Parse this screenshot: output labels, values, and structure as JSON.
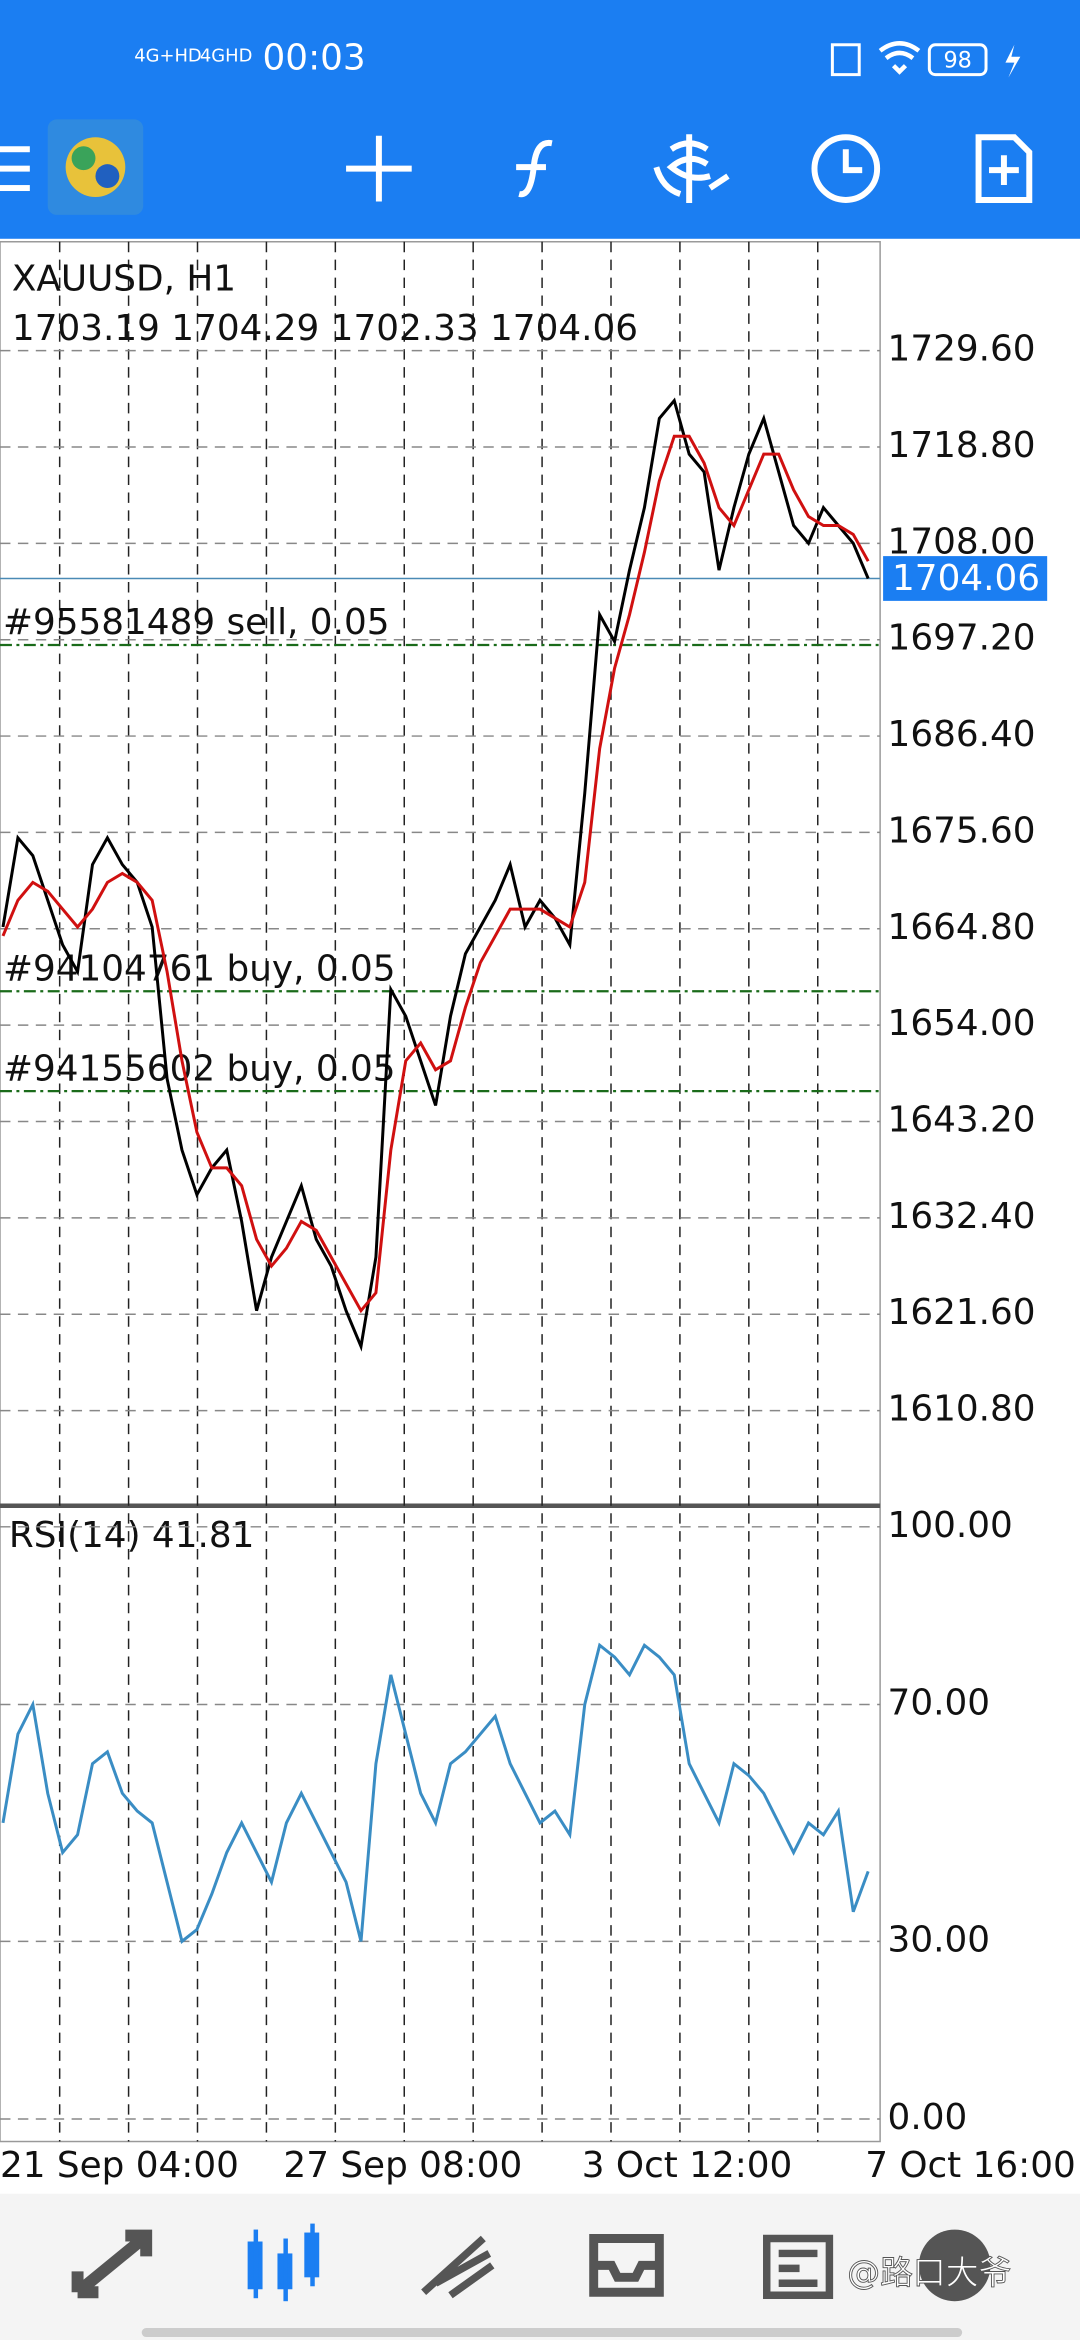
{
  "status_bar": {
    "network_1": "4G+HD",
    "network_2": "4GHD",
    "time": "00:03",
    "battery": "98"
  },
  "chart_data": [
    {
      "type": "line",
      "title": "XAUUSD, H1",
      "subtitle": "1703.19 1704.29 1702.33 1704.06",
      "ylim": [
        1600.3,
        1741.8
      ],
      "yticks": [
        {
          "value": 1610.8,
          "label": "1610.80"
        },
        {
          "value": 1621.6,
          "label": "1621.60"
        },
        {
          "value": 1632.4,
          "label": "1632.40"
        },
        {
          "value": 1643.2,
          "label": "1643.20"
        },
        {
          "value": 1654,
          "label": "1654.00"
        },
        {
          "value": 1664.8,
          "label": "1664.80"
        },
        {
          "value": 1675.6,
          "label": "1675.60"
        },
        {
          "value": 1686.4,
          "label": "1686.40"
        },
        {
          "value": 1697.2,
          "label": "1697.20"
        },
        {
          "value": 1708,
          "label": "1708.00"
        },
        {
          "value": 1718.8,
          "label": "1718.80"
        },
        {
          "value": 1729.6,
          "label": "1729.60"
        }
      ],
      "grid": true,
      "current_price": 1704.06,
      "orders": [
        {
          "label": "#95581489 sell, 0.05",
          "value": 1696.6
        },
        {
          "label": "#94104761 buy, 0.05",
          "value": 1657.8
        },
        {
          "label": "#94155602 buy, 0.05",
          "value": 1646.6
        }
      ],
      "series": [
        {
          "color": "#000000",
          "values": [
            1665,
            1675,
            1673,
            1668,
            1663,
            1660,
            1672,
            1675,
            1672,
            1670,
            1665,
            1648,
            1640,
            1635,
            1638,
            1640,
            1632,
            1622,
            1628,
            1632,
            1636,
            1630,
            1627,
            1622,
            1618,
            1628,
            1658,
            1655,
            1650,
            1645,
            1655,
            1662,
            1665,
            1668,
            1672,
            1665,
            1668,
            1666,
            1663,
            1680,
            1700,
            1697,
            1705,
            1712,
            1722,
            1724,
            1718,
            1716,
            1705,
            1712,
            1718,
            1722,
            1716,
            1710,
            1708,
            1712,
            1710,
            1708,
            1704.06
          ]
        },
        {
          "color": "#d01010",
          "values": [
            1664,
            1668,
            1670,
            1669,
            1667,
            1665,
            1667,
            1670,
            1671,
            1670,
            1668,
            1660,
            1650,
            1642,
            1638,
            1638,
            1636,
            1630,
            1627,
            1629,
            1632,
            1631,
            1628,
            1625,
            1622,
            1624,
            1640,
            1650,
            1652,
            1649,
            1650,
            1656,
            1661,
            1664,
            1667,
            1667,
            1667,
            1666,
            1665,
            1670,
            1685,
            1694,
            1700,
            1707,
            1715,
            1720,
            1720,
            1717,
            1712,
            1710,
            1714,
            1718,
            1718,
            1714,
            1711,
            1710,
            1710,
            1709,
            1706
          ]
        }
      ]
    },
    {
      "type": "line",
      "title": "RSI(14) 41.81",
      "ylim": [
        -3.8,
        103.3
      ],
      "yticks": [
        {
          "value": 0,
          "label": "0.00"
        },
        {
          "value": 30,
          "label": "30.00"
        },
        {
          "value": 70,
          "label": "70.00"
        },
        {
          "value": 100,
          "label": "100.00"
        }
      ],
      "grid": true,
      "categories": [
        "21 Sep 04:00",
        null,
        null,
        null,
        null,
        null,
        null,
        null,
        null,
        null,
        null,
        null,
        null,
        null,
        null,
        null,
        null,
        null,
        null,
        "27 Sep 08:00",
        null,
        null,
        null,
        null,
        null,
        null,
        null,
        null,
        null,
        null,
        null,
        null,
        null,
        null,
        null,
        null,
        null,
        null,
        null,
        "3 Oct 12:00",
        null,
        null,
        null,
        null,
        null,
        null,
        null,
        null,
        null,
        null,
        null,
        null,
        null,
        null,
        null,
        null,
        null,
        null,
        "7 Oct 16:00"
      ],
      "series": [
        {
          "color": "#3a8dc4",
          "values": [
            50,
            65,
            70,
            55,
            45,
            48,
            60,
            62,
            55,
            52,
            50,
            40,
            30,
            32,
            38,
            45,
            50,
            45,
            40,
            50,
            55,
            50,
            45,
            40,
            30,
            60,
            75,
            65,
            55,
            50,
            60,
            62,
            65,
            68,
            60,
            55,
            50,
            52,
            48,
            70,
            80,
            78,
            75,
            80,
            78,
            75,
            60,
            55,
            50,
            60,
            58,
            55,
            50,
            45,
            50,
            48,
            52,
            35,
            41.81
          ]
        }
      ]
    }
  ],
  "watermark": "@路口大爷"
}
